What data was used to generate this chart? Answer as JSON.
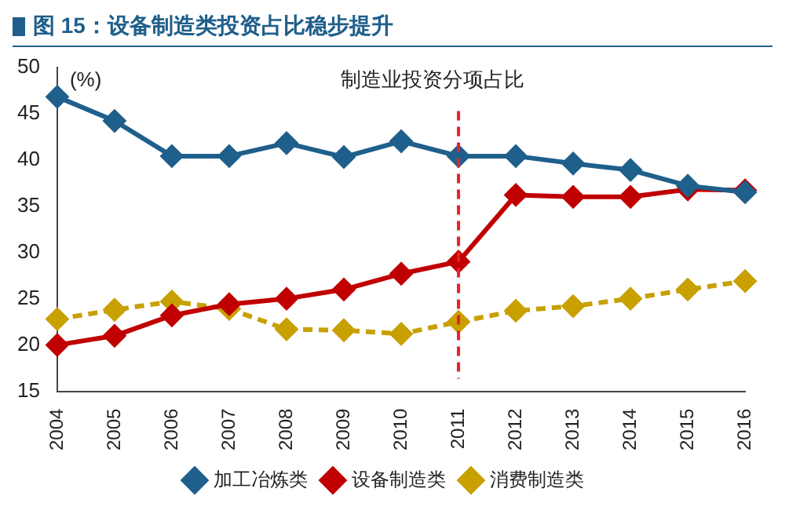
{
  "chart_data": {
    "type": "line",
    "title": "图 15：设备制造类投资占比稳步提升",
    "subtitle": "制造业投资分项占比",
    "ylabel": "(%)",
    "categories": [
      "2004",
      "2005",
      "2006",
      "2007",
      "2008",
      "2009",
      "2010",
      "2011",
      "2012",
      "2013",
      "2014",
      "2015",
      "2016"
    ],
    "series": [
      {
        "name": "加工冶炼类",
        "color": "#1f5f8b",
        "values": [
          46.8,
          44.2,
          40.4,
          40.4,
          41.8,
          40.3,
          42.0,
          40.4,
          40.4,
          39.6,
          38.9,
          37.2,
          36.5
        ]
      },
      {
        "name": "设备制造类",
        "color": "#c00000",
        "values": [
          20.0,
          21.0,
          23.2,
          24.4,
          25.0,
          26.0,
          27.7,
          29.0,
          36.2,
          36.0,
          36.0,
          36.8,
          36.7
        ]
      },
      {
        "name": "消费制造类",
        "color": "#c8a000",
        "line_style": "dashed",
        "values": [
          22.8,
          23.8,
          24.7,
          23.9,
          21.7,
          21.6,
          21.2,
          22.5,
          23.7,
          24.2,
          25.0,
          26.0,
          26.9
        ]
      }
    ],
    "ylim": [
      15,
      50
    ],
    "yticks": [
      15,
      20,
      25,
      30,
      35,
      40,
      45,
      50
    ],
    "grid": false,
    "legend": "bottom",
    "marker": "diamond",
    "line_style": "solid",
    "ref_lines": [
      {
        "axis": "x",
        "value": "2011",
        "color": "#e8202a",
        "line_style": "dashed"
      }
    ]
  }
}
